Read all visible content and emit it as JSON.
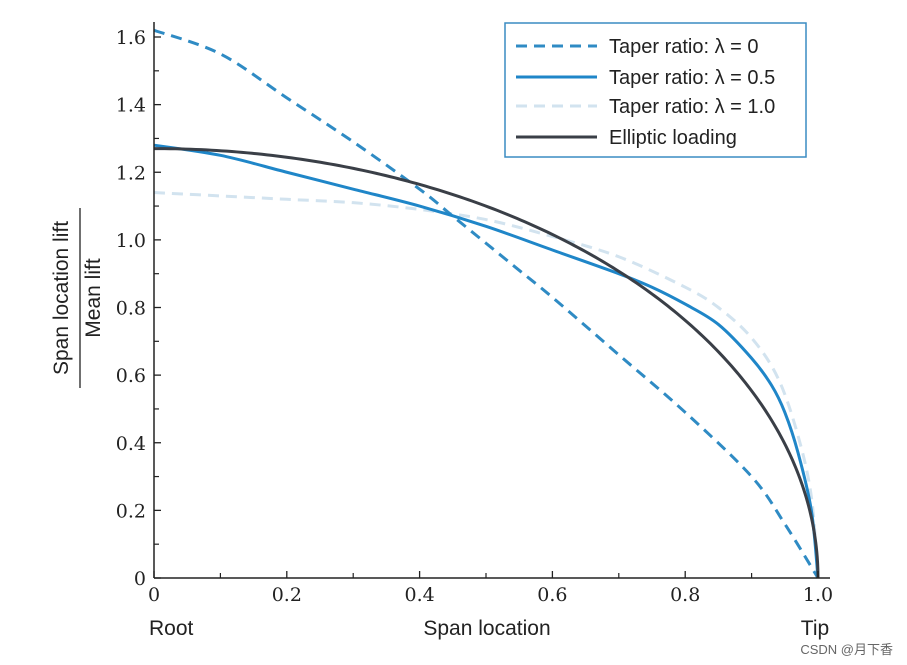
{
  "chart_data": {
    "type": "line",
    "title": "",
    "xlabel": "Span location",
    "xlabel_left": "Root",
    "xlabel_right": "Tip",
    "ylabel_numerator": "Span location lift",
    "ylabel_denominator": "Mean lift",
    "xlim": [
      0,
      1.0
    ],
    "ylim": [
      0,
      1.65
    ],
    "x_ticks": [
      0,
      0.2,
      0.4,
      0.6,
      0.8,
      1.0
    ],
    "x_tick_labels": [
      "0",
      "0.2",
      "0.4",
      "0.6",
      "0.8",
      "1.0"
    ],
    "y_ticks": [
      0,
      0.2,
      0.4,
      0.6,
      0.8,
      1.0,
      1.2,
      1.4,
      1.6
    ],
    "y_tick_labels": [
      "0",
      "0.2",
      "0.4",
      "0.6",
      "0.8",
      "1.0",
      "1.2",
      "1.4",
      "1.6"
    ],
    "grid": false,
    "legend_position": "top-right",
    "series": [
      {
        "name": "Taper ratio: λ = 0",
        "color": "#2f8bc4",
        "style": "dashed",
        "x": [
          0,
          0.1,
          0.2,
          0.3,
          0.4,
          0.45,
          0.5,
          0.55,
          0.6,
          0.7,
          0.8,
          0.9,
          0.95,
          1.0
        ],
        "y": [
          1.62,
          1.55,
          1.42,
          1.29,
          1.15,
          1.07,
          0.99,
          0.91,
          0.83,
          0.66,
          0.49,
          0.3,
          0.16,
          0.0
        ]
      },
      {
        "name": "Taper ratio: λ = 0.5",
        "color": "#1f86c8",
        "style": "solid",
        "x": [
          0,
          0.1,
          0.2,
          0.3,
          0.4,
          0.5,
          0.6,
          0.7,
          0.75,
          0.8,
          0.85,
          0.9,
          0.93,
          0.95,
          0.97,
          0.99,
          1.0
        ],
        "y": [
          1.28,
          1.25,
          1.2,
          1.15,
          1.1,
          1.04,
          0.97,
          0.9,
          0.86,
          0.81,
          0.75,
          0.65,
          0.57,
          0.49,
          0.37,
          0.2,
          0.0
        ]
      },
      {
        "name": "Taper ratio: λ = 1.0",
        "color": "#d2e3ef",
        "style": "dashed",
        "x": [
          0,
          0.1,
          0.2,
          0.3,
          0.4,
          0.5,
          0.6,
          0.7,
          0.8,
          0.85,
          0.9,
          0.94,
          0.97,
          0.99,
          1.0
        ],
        "y": [
          1.14,
          1.13,
          1.12,
          1.11,
          1.09,
          1.06,
          1.01,
          0.95,
          0.86,
          0.8,
          0.71,
          0.59,
          0.42,
          0.24,
          0.0
        ]
      },
      {
        "name": "Elliptic loading",
        "color": "#3a3f47",
        "style": "solid",
        "function": "elliptic",
        "amplitude": 1.27
      }
    ]
  },
  "watermark": "CSDN @月下香"
}
